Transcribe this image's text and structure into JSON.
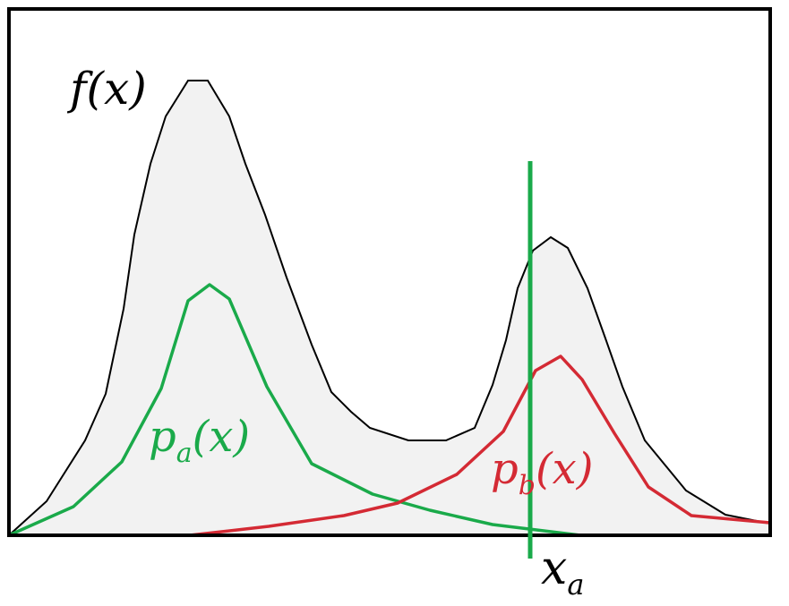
{
  "labels": {
    "f": {
      "main": "f(x)"
    },
    "pa": {
      "base": "p",
      "sub": "a",
      "rest": "(x)"
    },
    "pb": {
      "base": "p",
      "sub": "b",
      "rest": "(x)"
    },
    "xa": {
      "base": "x",
      "sub": "a"
    }
  },
  "colors": {
    "frame": "#000000",
    "f_fill": "#f2f2f2",
    "f_line": "#000000",
    "pa": "#1aaa4a",
    "pb": "#d42a34",
    "threshold": "#1aaa4a"
  }
}
